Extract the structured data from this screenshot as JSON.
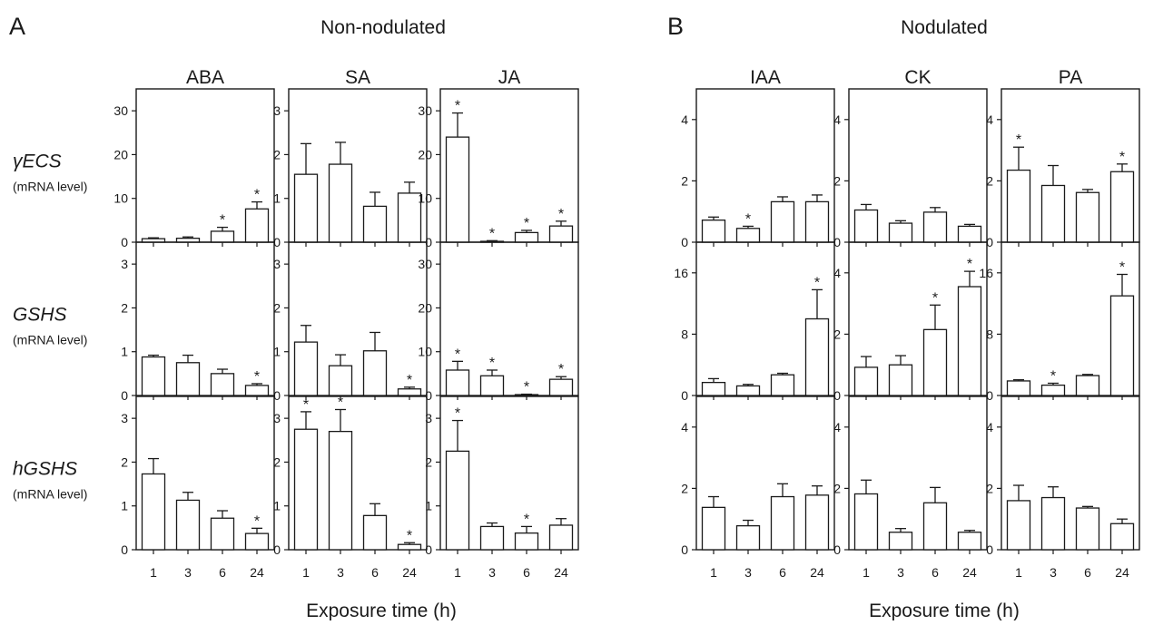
{
  "chart_data": {
    "type": "bar",
    "figure_labels": {
      "panel_a": "A",
      "panel_b": "B",
      "group_a_title": "Non-nodulated",
      "group_b_title": "Nodulated",
      "xlabel": "Exposure time (h)",
      "unit": "(mRNA level)"
    },
    "categories": [
      "1",
      "3",
      "6",
      "24"
    ],
    "rows": [
      {
        "gene": "γECS"
      },
      {
        "gene": "GSHS"
      },
      {
        "gene": "hGSHS"
      }
    ],
    "columns": [
      {
        "group": "A",
        "hormone": "ABA",
        "ylim": [
          [
            0,
            35
          ],
          [
            0,
            3.5
          ],
          [
            0,
            3.5
          ]
        ],
        "yticks": [
          [
            0,
            10,
            20,
            30
          ],
          [
            0,
            1,
            2,
            3
          ],
          [
            0,
            1,
            2,
            3
          ]
        ]
      },
      {
        "group": "A",
        "hormone": "SA",
        "ylim": [
          [
            0,
            3.5
          ],
          [
            0,
            3.5
          ],
          [
            0,
            3.5
          ]
        ],
        "yticks": [
          [
            0,
            1,
            2,
            3
          ],
          [
            0,
            1,
            2,
            3
          ],
          [
            0,
            1,
            2,
            3
          ]
        ]
      },
      {
        "group": "A",
        "hormone": "JA",
        "ylim": [
          [
            0,
            35
          ],
          [
            0,
            35
          ],
          [
            0,
            3.5
          ]
        ],
        "yticks": [
          [
            0,
            10,
            20,
            30
          ],
          [
            0,
            10,
            20,
            30
          ],
          [
            0,
            1,
            2,
            3
          ]
        ]
      },
      {
        "group": "B",
        "hormone": "IAA",
        "ylim": [
          [
            0,
            5
          ],
          [
            0,
            20
          ],
          [
            0,
            5
          ]
        ],
        "yticks": [
          [
            0,
            2,
            4
          ],
          [
            0,
            8,
            16
          ],
          [
            0,
            2,
            4
          ]
        ]
      },
      {
        "group": "B",
        "hormone": "CK",
        "ylim": [
          [
            0,
            5
          ],
          [
            0,
            5
          ],
          [
            0,
            5
          ]
        ],
        "yticks": [
          [
            0,
            2,
            4
          ],
          [
            0,
            2,
            4
          ],
          [
            0,
            2,
            4
          ]
        ]
      },
      {
        "group": "B",
        "hormone": "PA",
        "ylim": [
          [
            0,
            5
          ],
          [
            0,
            20
          ],
          [
            0,
            5
          ]
        ],
        "yticks": [
          [
            0,
            2,
            4
          ],
          [
            0,
            8,
            16
          ],
          [
            0,
            2,
            4
          ]
        ]
      }
    ],
    "panels": [
      {
        "row": 0,
        "col": 0,
        "values": [
          0.8,
          0.9,
          2.5,
          7.6
        ],
        "errors": [
          0.2,
          0.3,
          0.9,
          1.6
        ],
        "significant": [
          false,
          false,
          true,
          true
        ]
      },
      {
        "row": 0,
        "col": 1,
        "values": [
          1.55,
          1.78,
          0.82,
          1.12
        ],
        "errors": [
          0.7,
          0.5,
          0.32,
          0.25
        ],
        "significant": [
          false,
          false,
          false,
          false
        ]
      },
      {
        "row": 0,
        "col": 2,
        "values": [
          24.0,
          0.2,
          2.2,
          3.7
        ],
        "errors": [
          5.5,
          0.15,
          0.5,
          1.1
        ],
        "significant": [
          true,
          true,
          true,
          true
        ]
      },
      {
        "row": 0,
        "col": 3,
        "values": [
          0.72,
          0.45,
          1.32,
          1.32
        ],
        "errors": [
          0.1,
          0.07,
          0.16,
          0.22
        ],
        "significant": [
          false,
          true,
          false,
          false
        ]
      },
      {
        "row": 0,
        "col": 4,
        "values": [
          1.05,
          0.62,
          0.98,
          0.52
        ],
        "errors": [
          0.18,
          0.08,
          0.15,
          0.06
        ],
        "significant": [
          false,
          false,
          false,
          false
        ]
      },
      {
        "row": 0,
        "col": 5,
        "values": [
          2.35,
          1.85,
          1.62,
          2.3
        ],
        "errors": [
          0.75,
          0.65,
          0.1,
          0.25
        ],
        "significant": [
          true,
          false,
          false,
          true
        ]
      },
      {
        "row": 1,
        "col": 0,
        "values": [
          0.88,
          0.75,
          0.5,
          0.23
        ],
        "errors": [
          0.04,
          0.17,
          0.1,
          0.04
        ],
        "significant": [
          false,
          false,
          false,
          true
        ]
      },
      {
        "row": 1,
        "col": 1,
        "values": [
          1.22,
          0.68,
          1.02,
          0.15
        ],
        "errors": [
          0.38,
          0.25,
          0.42,
          0.04
        ],
        "significant": [
          false,
          false,
          false,
          true
        ]
      },
      {
        "row": 1,
        "col": 2,
        "values": [
          5.8,
          4.5,
          0.2,
          3.7
        ],
        "errors": [
          2.0,
          1.3,
          0.1,
          0.6
        ],
        "significant": [
          true,
          true,
          true,
          true
        ]
      },
      {
        "row": 1,
        "col": 3,
        "values": [
          1.7,
          1.25,
          2.7,
          10.0
        ],
        "errors": [
          0.5,
          0.2,
          0.2,
          3.8
        ],
        "significant": [
          false,
          false,
          false,
          true
        ]
      },
      {
        "row": 1,
        "col": 4,
        "values": [
          0.92,
          1.0,
          2.15,
          3.55
        ],
        "errors": [
          0.35,
          0.3,
          0.8,
          0.5
        ],
        "significant": [
          false,
          false,
          true,
          true
        ]
      },
      {
        "row": 1,
        "col": 5,
        "values": [
          1.9,
          1.35,
          2.6,
          13.0
        ],
        "errors": [
          0.15,
          0.25,
          0.15,
          2.8
        ],
        "significant": [
          false,
          true,
          false,
          true
        ]
      },
      {
        "row": 2,
        "col": 0,
        "values": [
          1.73,
          1.13,
          0.72,
          0.37
        ],
        "errors": [
          0.35,
          0.18,
          0.17,
          0.12
        ],
        "significant": [
          false,
          false,
          false,
          true
        ]
      },
      {
        "row": 2,
        "col": 1,
        "values": [
          2.75,
          2.7,
          0.78,
          0.12
        ],
        "errors": [
          0.4,
          0.5,
          0.27,
          0.04
        ],
        "significant": [
          true,
          true,
          false,
          true
        ]
      },
      {
        "row": 2,
        "col": 2,
        "values": [
          2.25,
          0.53,
          0.38,
          0.56
        ],
        "errors": [
          0.7,
          0.08,
          0.15,
          0.15
        ],
        "significant": [
          true,
          false,
          true,
          false
        ]
      },
      {
        "row": 2,
        "col": 3,
        "values": [
          1.38,
          0.78,
          1.73,
          1.78
        ],
        "errors": [
          0.35,
          0.18,
          0.42,
          0.3
        ],
        "significant": [
          false,
          false,
          false,
          false
        ]
      },
      {
        "row": 2,
        "col": 4,
        "values": [
          1.82,
          0.57,
          1.53,
          0.57
        ],
        "errors": [
          0.45,
          0.12,
          0.5,
          0.06
        ],
        "significant": [
          false,
          false,
          false,
          false
        ]
      },
      {
        "row": 2,
        "col": 5,
        "values": [
          1.6,
          1.7,
          1.36,
          0.85
        ],
        "errors": [
          0.5,
          0.35,
          0.05,
          0.15
        ],
        "significant": [
          false,
          false,
          false,
          false
        ]
      }
    ],
    "significance_marker": "*",
    "grid": false,
    "legend": "none"
  }
}
